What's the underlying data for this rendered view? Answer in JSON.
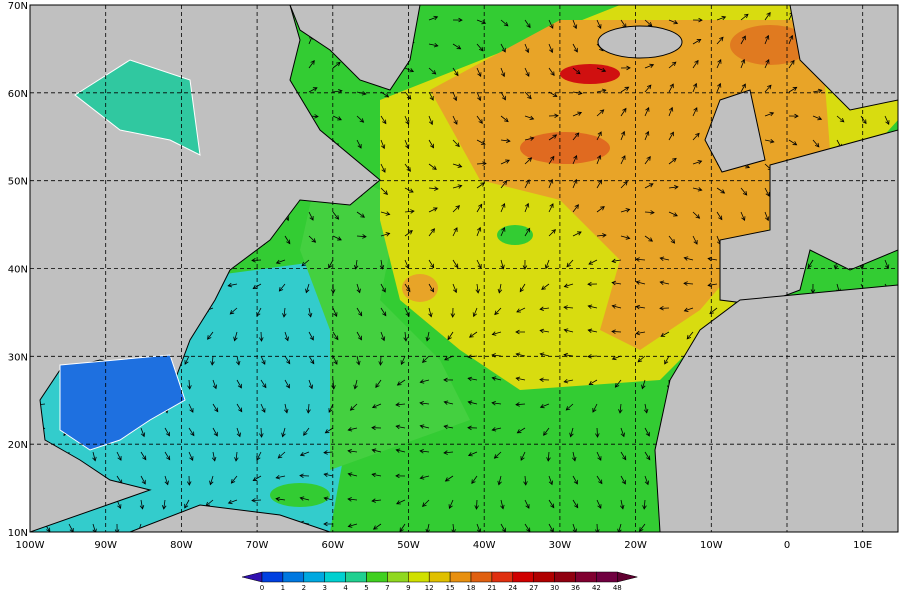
{
  "map": {
    "lat_labels": [
      "70N",
      "60N",
      "50N",
      "40N",
      "30N",
      "20N",
      "10N"
    ],
    "lon_labels": [
      "100W",
      "90W",
      "80W",
      "70W",
      "60W",
      "50W",
      "40W",
      "30W",
      "20W",
      "10W",
      "0",
      "10E"
    ],
    "colorbar_labels": [
      0,
      1,
      2,
      3,
      4,
      5,
      7,
      9,
      12,
      15,
      18,
      21,
      24,
      27,
      30,
      36,
      42,
      48
    ]
  }
}
